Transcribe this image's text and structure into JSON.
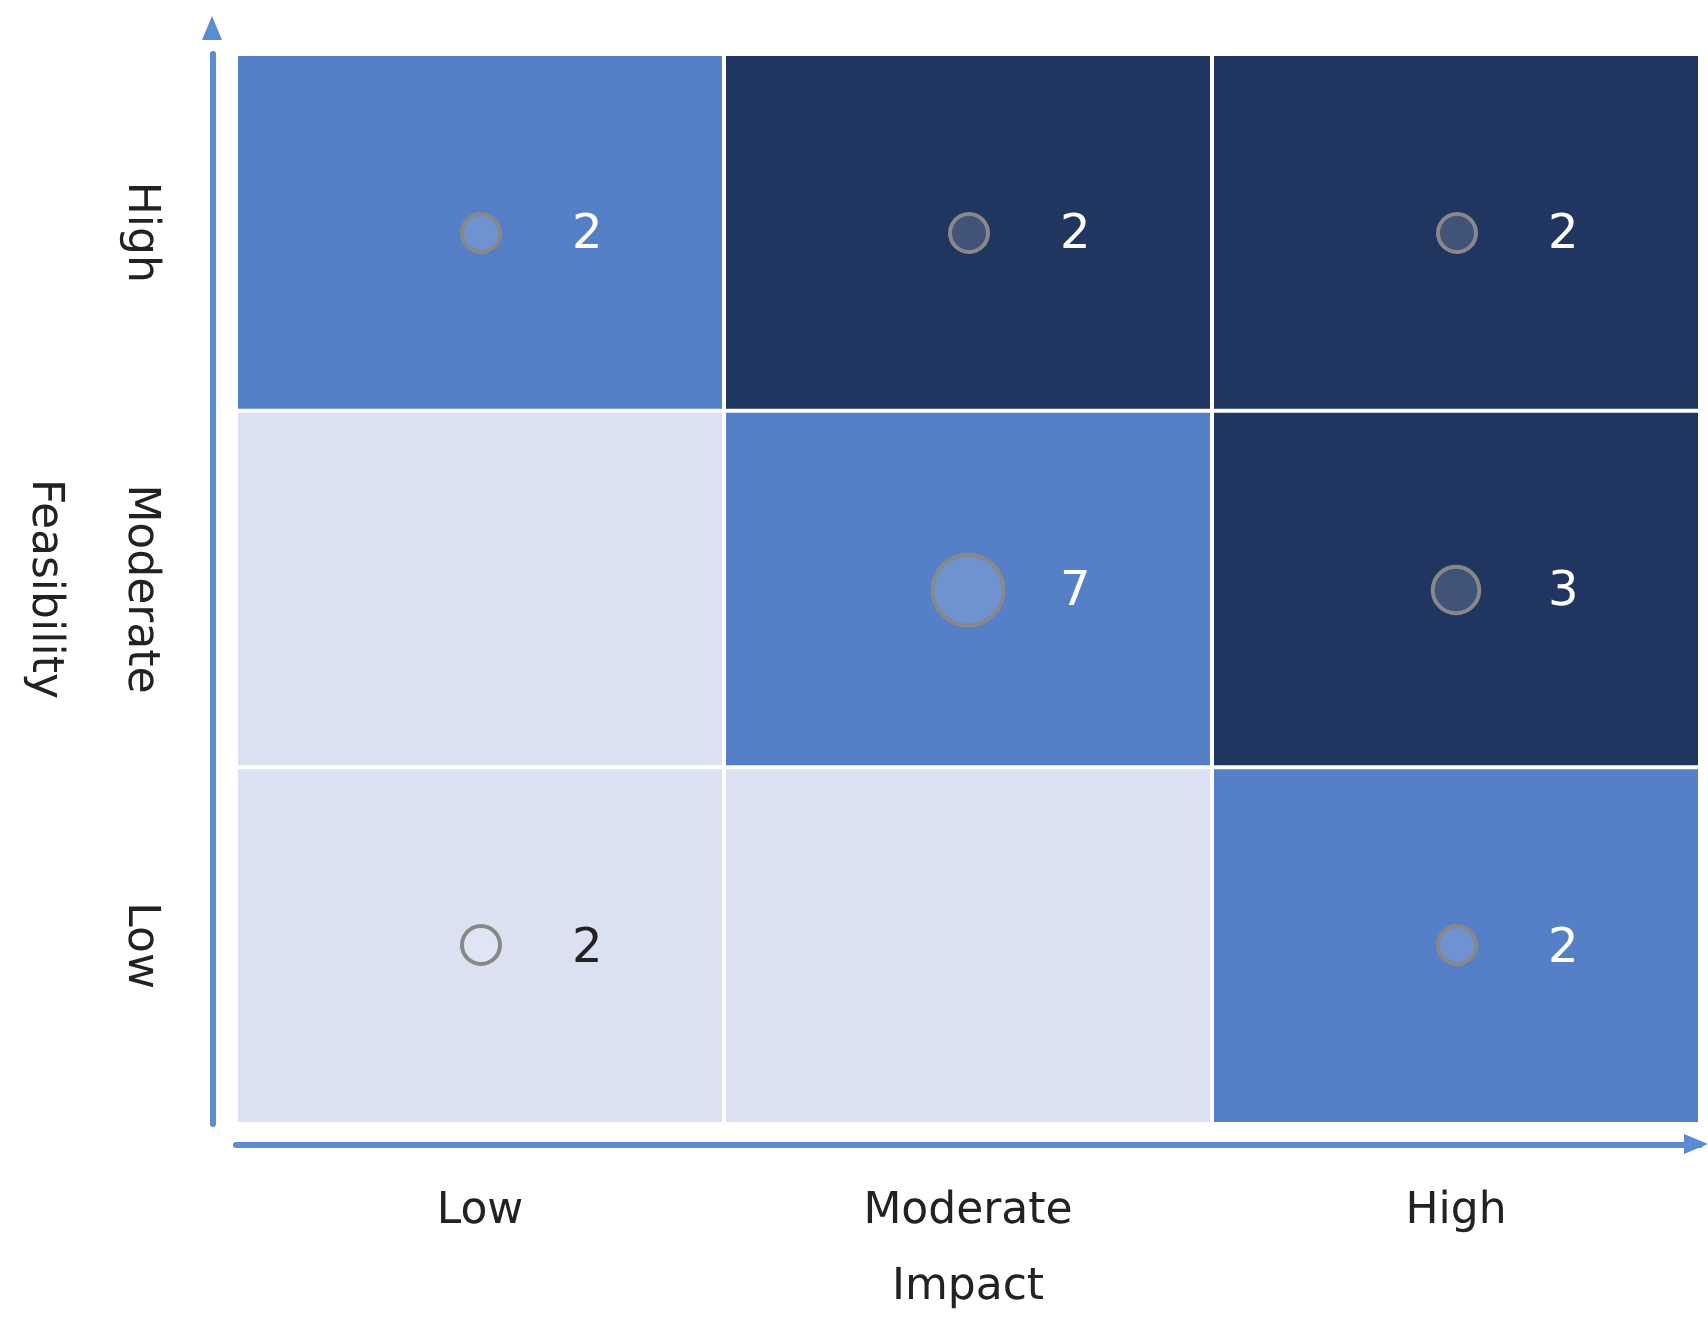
{
  "chart_data": {
    "type": "heatmap",
    "xlabel": "Impact",
    "ylabel": "Feasibility",
    "categories": [
      "Low",
      "Moderate",
      "High"
    ],
    "y_categories": [
      "High",
      "Moderate",
      "Low"
    ],
    "cells": [
      [
        2,
        2,
        2
      ],
      [
        null,
        7,
        3
      ],
      [
        2,
        null,
        2
      ]
    ],
    "colors": [
      "#5580c8",
      "#203560",
      "#203560",
      "#dbe1f1",
      "#5580c8",
      "#203560",
      "#dbe1f1",
      "#dbe1f1",
      "#5580c8"
    ],
    "data_labels": true
  }
}
